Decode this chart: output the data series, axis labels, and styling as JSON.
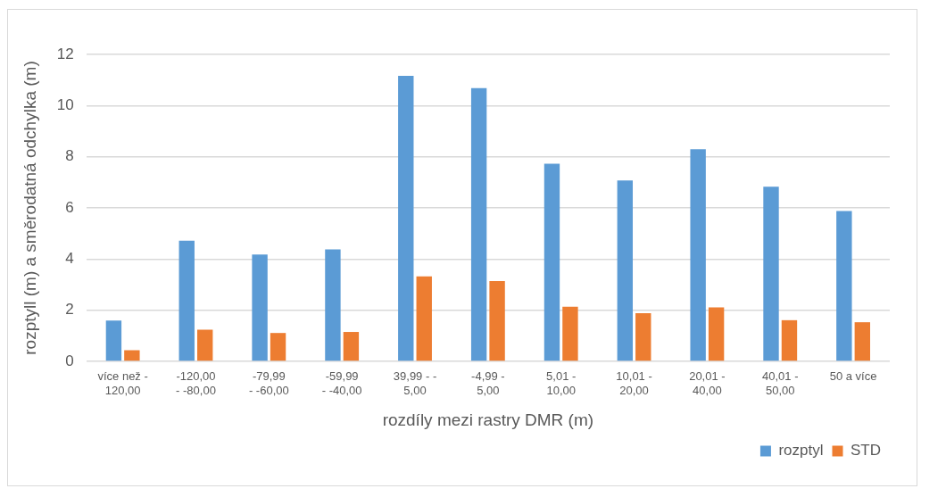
{
  "chart_data": {
    "type": "bar",
    "xlabel": "rozdíly mezi rastry DMR (m)",
    "ylabel": "rozptyll (m) a směrodatná odchylka (m)",
    "categories": [
      "více než -\n120,00",
      "-120,00\n- -80,00",
      "-79,99\n- -60,00",
      "-59,99\n- -40,00",
      "39,99 - -\n5,00",
      "-4,99 -\n5,00",
      "5,01 -\n10,00",
      "10,01 -\n20,00",
      "20,01 -\n40,00",
      "40,01 -\n50,00",
      "50 a více"
    ],
    "series": [
      {
        "name": "rozptyl",
        "color": "#5b9bd5",
        "values": [
          1.6,
          4.72,
          4.18,
          4.38,
          11.16,
          10.68,
          7.73,
          7.07,
          8.29,
          6.83,
          5.88
        ]
      },
      {
        "name": "STD",
        "color": "#ed7d31",
        "values": [
          0.44,
          1.24,
          1.11,
          1.15,
          3.32,
          3.14,
          2.14,
          1.88,
          2.11,
          1.61,
          1.53
        ]
      }
    ],
    "ylim": [
      0,
      12
    ],
    "yticks": [
      0,
      2,
      4,
      6,
      8,
      10,
      12
    ],
    "grid": "y",
    "legend": "bottom right"
  }
}
